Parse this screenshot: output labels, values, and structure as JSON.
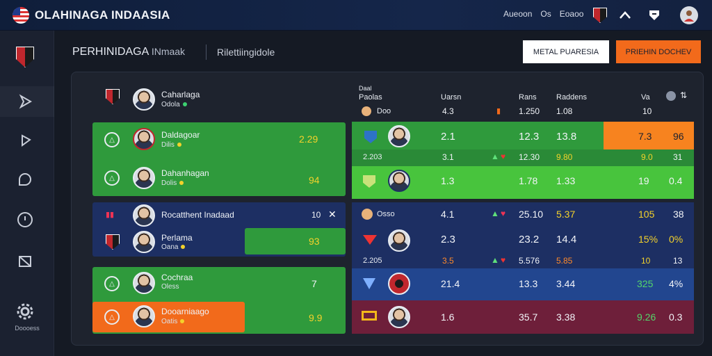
{
  "app": {
    "title": "OLAHINAGA INDAASIA",
    "top_links": [
      "Aueoon",
      "Os",
      "Eoaoo"
    ]
  },
  "sidebar": {
    "settings_label": "Doooess"
  },
  "header": {
    "title": "PERHINIDAGA",
    "subtitle": "INmaak",
    "tab": "Rilettiingidole",
    "btn_white": "METAL PUARESIA",
    "btn_orange": "PRIEHIN DOCHEV"
  },
  "left": {
    "top": {
      "name": "Caharlaga",
      "meta": "Odola"
    },
    "rows": [
      {
        "name": "Daldagoar",
        "meta": "Dilis",
        "value": "2.29"
      },
      {
        "name": "Dahanhagan",
        "meta": "Dolis",
        "value": "94"
      },
      {
        "name": "Rocatthent Inadaad",
        "meta": "",
        "value": "10"
      },
      {
        "name": "Perlama",
        "meta": "Oana",
        "value": "93"
      },
      {
        "name": "Cochraa",
        "meta": "Oless",
        "value": "7"
      },
      {
        "name": "Dooarniaago",
        "meta": "Oatis",
        "value": "9.9"
      }
    ]
  },
  "right": {
    "headers": {
      "col0": "Paolas",
      "col0_top": "Daal",
      "col1": "Uarsn",
      "col2": "Rans",
      "col3": "Raddens",
      "col4": "Va"
    },
    "sub0": {
      "label": "Doo",
      "c1": "4.3",
      "c2": "1.250",
      "c3": "1.08",
      "c4": "10"
    },
    "rows": [
      {
        "c1": "2.1",
        "c2": "12.3",
        "c3": "13.8",
        "c4": "7.3",
        "c5": "96"
      },
      {
        "label": "2.203",
        "c1": "3.1",
        "c2": "12.30",
        "c3": "9.80",
        "c4": "9.0",
        "c5": "31"
      },
      {
        "c1": "1.3",
        "c2": "1.78",
        "c3": "1.33",
        "c4": "19",
        "c5": "0.4"
      },
      {
        "label": "Osso",
        "c1": "4.1",
        "c2": "25.10",
        "c3": "5.37",
        "c4": "105",
        "c5": "38"
      },
      {
        "c1": "2.3",
        "c2": "23.2",
        "c3": "14.4",
        "c4": "15%",
        "c5": "0%"
      },
      {
        "label": "2.205",
        "c1": "3.5",
        "c2": "5.576",
        "c3": "5.85",
        "c4": "10",
        "c5": "13"
      },
      {
        "c1": "21.4",
        "c2": "13.3",
        "c3": "3.44",
        "c4": "325",
        "c5": "4%"
      },
      {
        "c1": "1.6",
        "c2": "35.7",
        "c3": "3.38",
        "c4": "9.26",
        "c5": "0.3"
      }
    ]
  }
}
